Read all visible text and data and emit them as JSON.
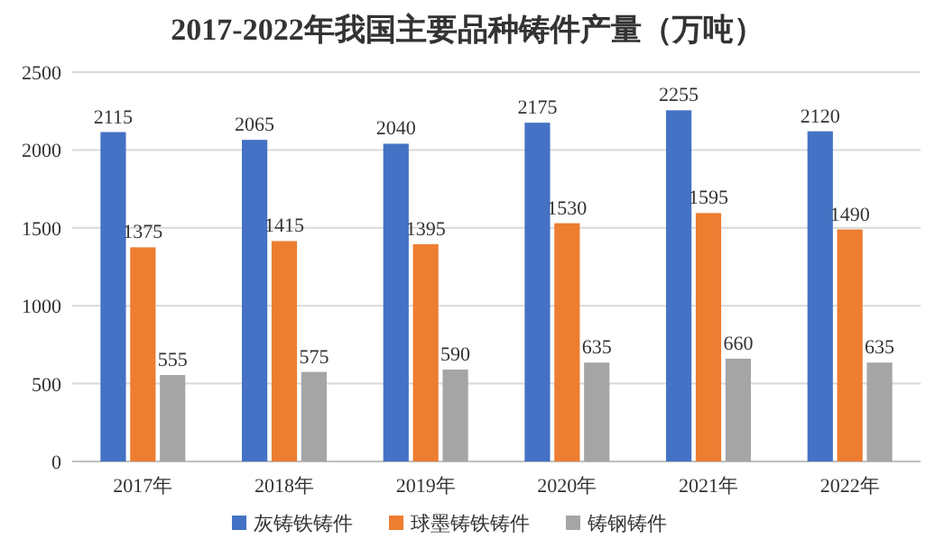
{
  "chart_data": {
    "type": "bar",
    "title": "2017-2022年我国主要品种铸件产量（万吨）",
    "categories": [
      "2017年",
      "2018年",
      "2019年",
      "2020年",
      "2021年",
      "2022年"
    ],
    "series": [
      {
        "name": "灰铸铁铸件",
        "color": "#4472c4",
        "values": [
          2115,
          2065,
          2040,
          2175,
          2255,
          2120
        ]
      },
      {
        "name": "球墨铸铁铸件",
        "color": "#ed7d31",
        "values": [
          1375,
          1415,
          1395,
          1530,
          1595,
          1490
        ]
      },
      {
        "name": "铸钢铸件",
        "color": "#a5a5a5",
        "values": [
          555,
          575,
          590,
          635,
          660,
          635
        ]
      }
    ],
    "ylim": [
      0,
      2500
    ],
    "yticks": [
      0,
      500,
      1000,
      1500,
      2000,
      2500
    ],
    "grid": "y",
    "legend": "bottom",
    "data_labels": true
  }
}
